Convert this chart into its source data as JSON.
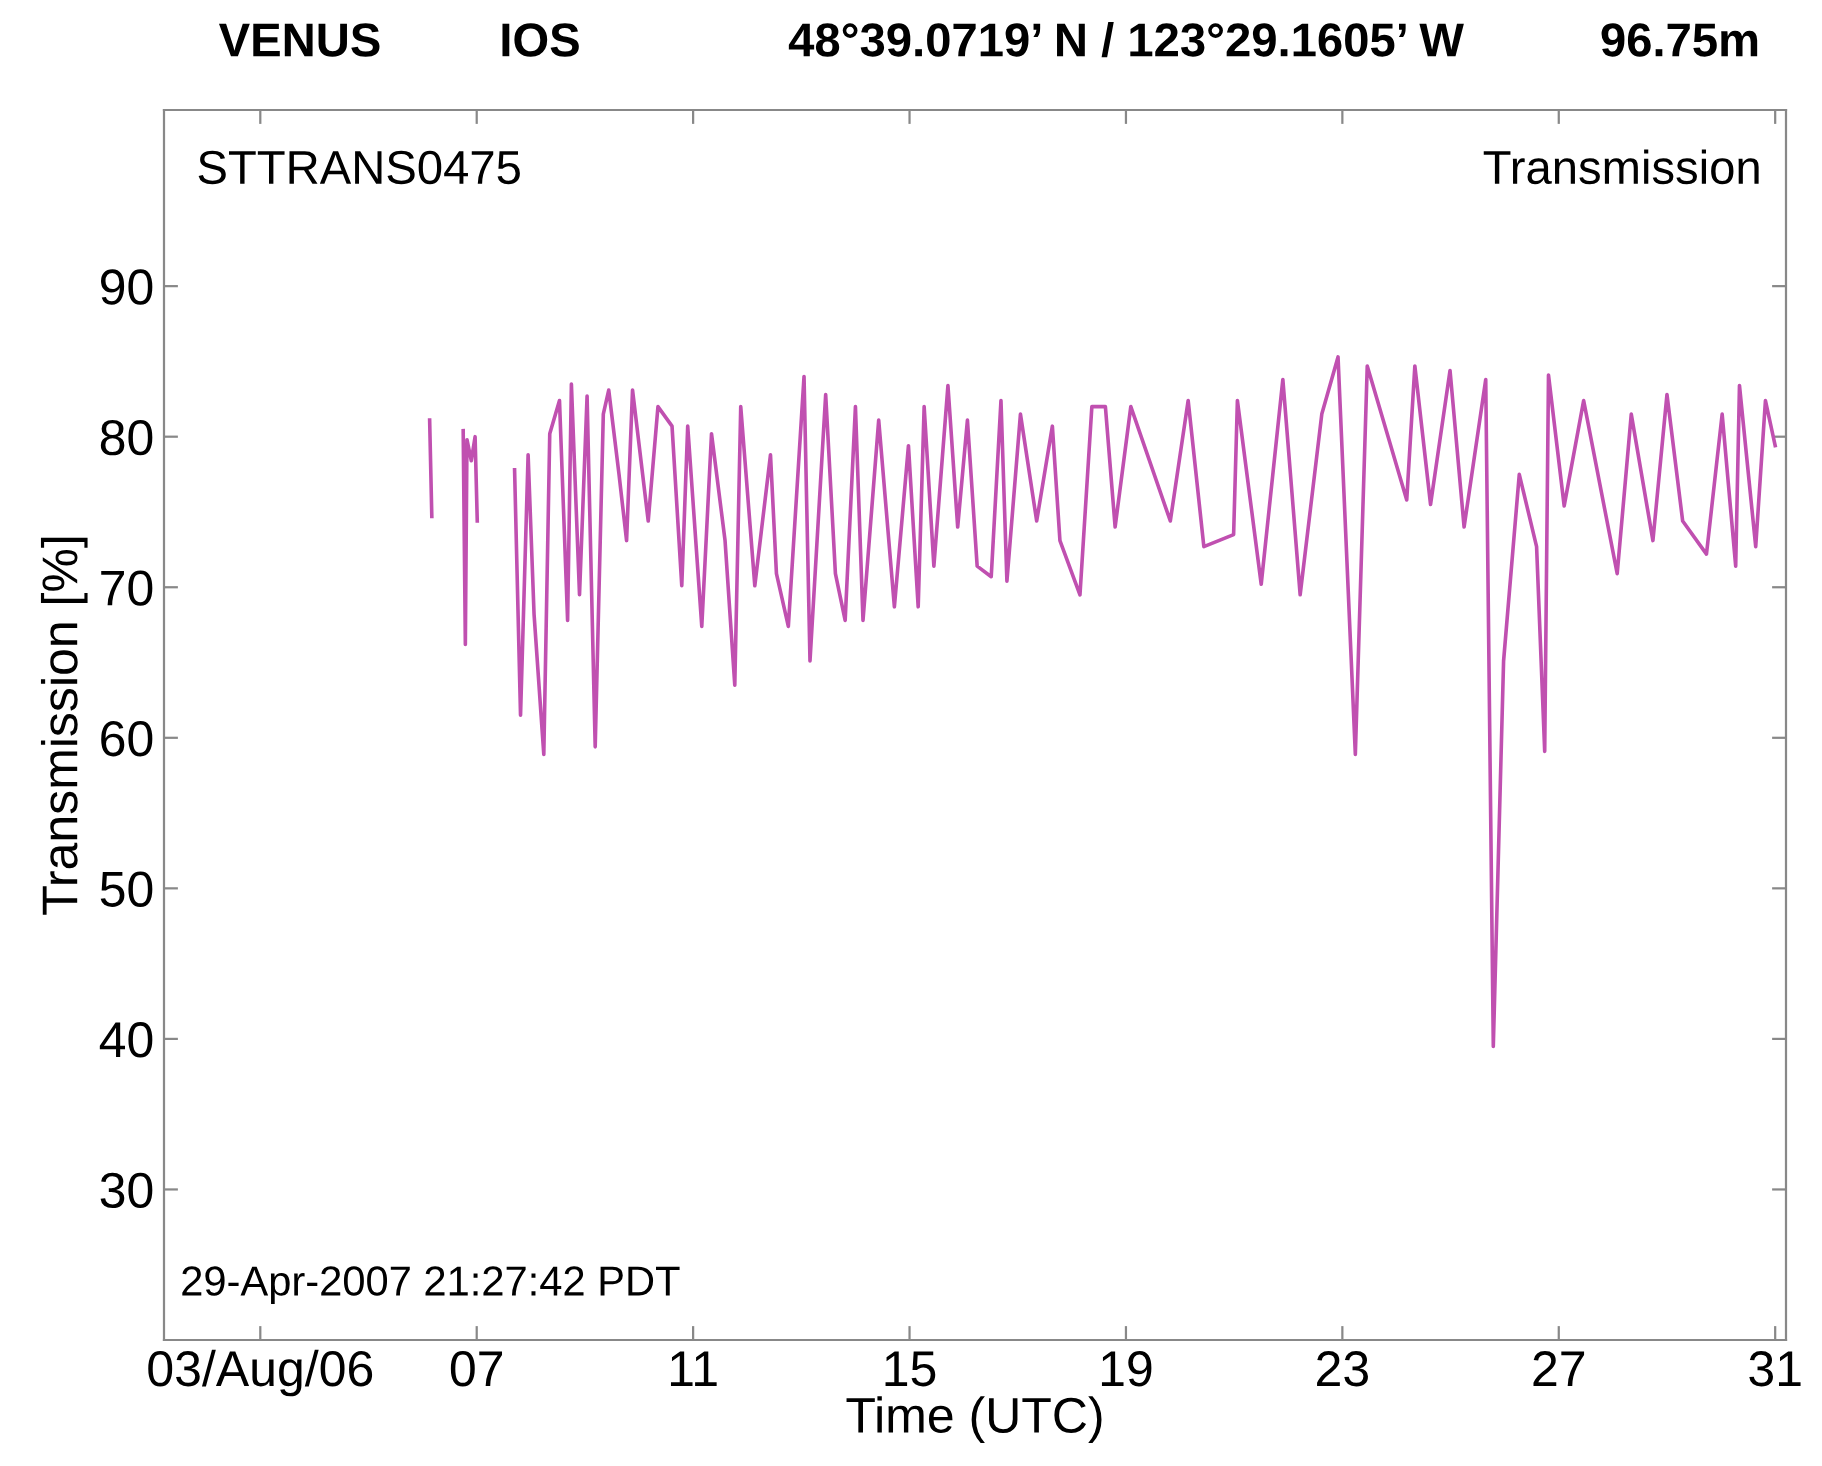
{
  "chart_data": {
    "type": "line",
    "title": "VENUS",
    "xlabel": "Time (UTC)",
    "ylabel": "Transmission [%]",
    "annotations": [
      "IOS",
      "48°39.0719’ N / 123°29.1605’ W",
      "96.75m",
      "STTRANS0475",
      "Transmission",
      "29-Apr-2007 21:27:42 PDT"
    ],
    "x": [
      6.13,
      6.17,
      6.42,
      6.75,
      6.79,
      6.82,
      6.9,
      6.97,
      7.01,
      7.33,
      7.7,
      7.81,
      7.95,
      8.06,
      8.24,
      8.35,
      8.53,
      8.68,
      8.75,
      8.9,
      9.04,
      9.19,
      9.34,
      9.44,
      9.63,
      9.77,
      9.88,
      10.17,
      10.35,
      10.61,
      10.79,
      10.9,
      11.16,
      11.34,
      11.59,
      11.77,
      11.88,
      12.14,
      12.43,
      12.54,
      12.76,
      13.05,
      13.16,
      13.45,
      13.63,
      13.81,
      14.0,
      14.14,
      14.43,
      14.72,
      14.98,
      15.16,
      15.27,
      15.45,
      15.71,
      15.89,
      16.07,
      16.25,
      16.51,
      16.69,
      16.8,
      17.05,
      17.35,
      17.64,
      17.78,
      18.15,
      18.37,
      18.62,
      18.8,
      19.09,
      19.82,
      20.15,
      20.44,
      20.99,
      21.06,
      21.5,
      21.9,
      22.22,
      22.62,
      22.92,
      23.24,
      23.46,
      24.19,
      24.34,
      24.63,
      24.99,
      25.25,
      25.65,
      25.79,
      25.98,
      26.27,
      26.59,
      26.74,
      26.81,
      27.1,
      27.46,
      28.08,
      28.34,
      28.74,
      29.0,
      29.29,
      29.73,
      30.02,
      30.27,
      30.34,
      30.64,
      30.82,
      31.0
    ],
    "series": [
      {
        "color": "#c050b0",
        "values": [
          81.1,
          74.7,
          null,
          80.4,
          66.2,
          79.8,
          78.4,
          80.0,
          74.4,
          null,
          77.8,
          61.5,
          78.8,
          68.2,
          58.9,
          80.2,
          82.4,
          67.8,
          83.5,
          69.5,
          82.7,
          59.4,
          81.5,
          83.1,
          77.5,
          73.1,
          83.1,
          74.4,
          82.0,
          80.7,
          70.1,
          80.7,
          67.4,
          80.2,
          73.1,
          63.5,
          82.0,
          70.1,
          78.8,
          70.9,
          67.4,
          84.0,
          65.1,
          82.8,
          70.9,
          67.8,
          82.0,
          67.8,
          81.1,
          68.7,
          79.4,
          68.7,
          82.0,
          71.4,
          83.4,
          74.0,
          81.1,
          71.4,
          70.7,
          82.4,
          70.4,
          81.5,
          74.4,
          80.7,
          73.1,
          69.5,
          82.0,
          82.0,
          74.0,
          82.0,
          74.4,
          82.4,
          72.7,
          73.5,
          82.4,
          70.2,
          83.8,
          69.5,
          81.5,
          85.3,
          58.9,
          84.7,
          75.8,
          84.7,
          75.5,
          84.4,
          74.0,
          83.8,
          39.5,
          65.1,
          77.5,
          72.7,
          59.1,
          84.1,
          75.4,
          82.4,
          70.9,
          81.5,
          73.1,
          82.8,
          74.4,
          72.2,
          81.5,
          71.4,
          83.4,
          72.7,
          82.4,
          79.4
        ]
      }
    ],
    "xlim": [
      1.22,
      31.2
    ],
    "xticks": [
      {
        "value": 3,
        "label": "03/Aug/06"
      },
      {
        "value": 7,
        "label": "07"
      },
      11,
      15,
      19,
      23,
      27,
      31
    ],
    "ylim": [
      20,
      101.7
    ],
    "yticks": [
      30,
      40,
      50,
      60,
      70,
      80,
      90
    ],
    "grid": false,
    "legend": false,
    "marker": "none",
    "line_style": "solid"
  }
}
